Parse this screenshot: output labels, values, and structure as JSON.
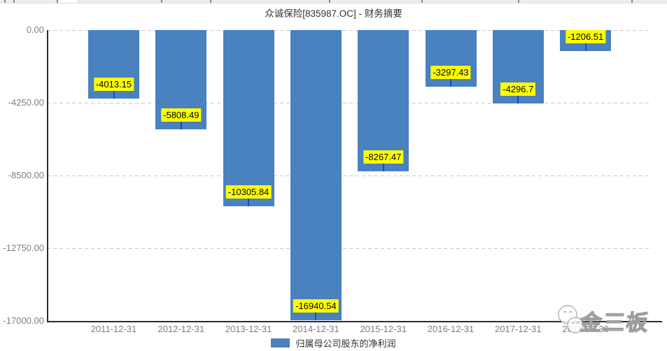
{
  "title": "众诚保险[835987.OC] - 财务摘要",
  "chart_data": {
    "type": "bar",
    "title": "众诚保险[835987.OC] - 财务摘要",
    "categories": [
      "2011-12-31",
      "2012-12-31",
      "2013-12-31",
      "2014-12-31",
      "2015-12-31",
      "2016-12-31",
      "2017-12-31",
      "2018-06-30"
    ],
    "series": [
      {
        "name": "归属母公司股东的净利润",
        "values": [
          -4013.15,
          -5808.49,
          -10305.84,
          -16940.54,
          -8267.47,
          -3297.43,
          -4296.7,
          -1206.51
        ]
      }
    ],
    "data_labels": [
      "-4013.15",
      "-5808.49",
      "-10305.84",
      "-16940.54",
      "-8267.47",
      "-3297.43",
      "-4296.7",
      "-1206.51"
    ],
    "xlabel": "",
    "ylabel": "",
    "ylim": [
      -17000,
      0
    ],
    "yticks": [
      0,
      -4250,
      -8500,
      -12750,
      -17000
    ],
    "ytick_labels": [
      "0.00",
      "-4250.00",
      "-8500.00",
      "-12750.00",
      "-17000.00"
    ],
    "grid": true,
    "legend_position": "bottom",
    "colors": {
      "bar": "#4A81BF",
      "data_label_bg": "#FFFF00",
      "data_label_text": "#000000",
      "data_label_tick": "#2244CC",
      "axis_line": "#2B2B2B",
      "gridline": "#C9C9C9",
      "tick_text": "#7F7F7F",
      "title_text": "#333333"
    }
  },
  "legend": {
    "label": "归属母公司股东的净利润",
    "swatch_color": "#4A81BF"
  },
  "watermark": {
    "text": "金三板",
    "logo": "two-smiley-faces-logo"
  }
}
